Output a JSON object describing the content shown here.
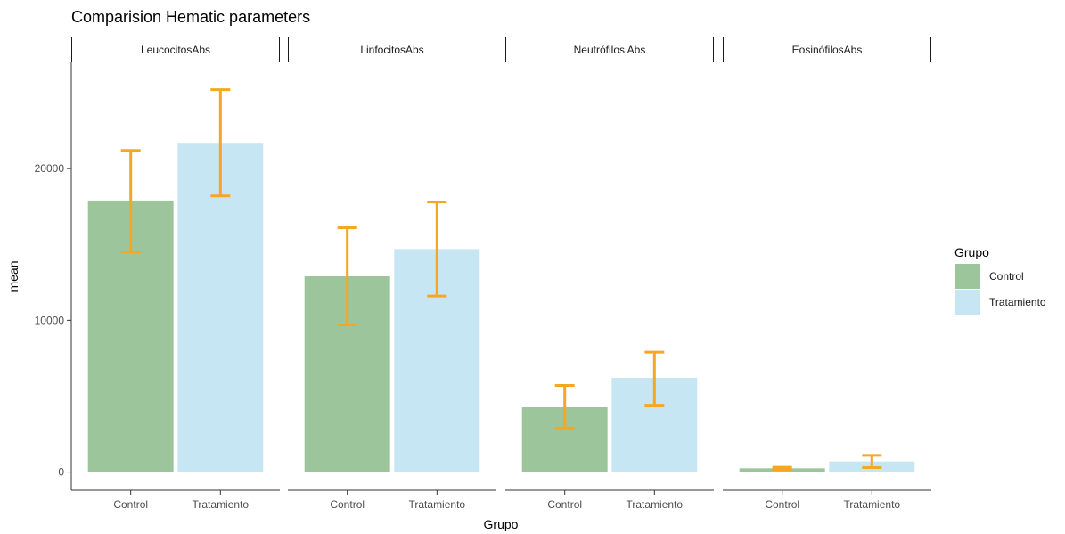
{
  "chart_data": {
    "type": "bar",
    "title": "Comparision Hematic parameters",
    "xlabel": "Grupo",
    "ylabel": "mean",
    "ylim": [
      -1200,
      27000
    ],
    "yticks": [
      0,
      10000,
      20000
    ],
    "ytick_labels": [
      "0",
      "10000",
      "20000"
    ],
    "categories": [
      "Control",
      "Tratamiento"
    ],
    "facets": [
      {
        "label": "LeucocitosAbs",
        "values": [
          17900,
          21700
        ],
        "error_low": [
          14500,
          18200
        ],
        "error_high": [
          21200,
          25200
        ]
      },
      {
        "label": "LinfocitosAbs",
        "values": [
          12900,
          14700
        ],
        "error_low": [
          9700,
          11600
        ],
        "error_high": [
          16100,
          17800
        ]
      },
      {
        "label": "Neutrófilos Abs",
        "values": [
          4300,
          6200
        ],
        "error_low": [
          2900,
          4400
        ],
        "error_high": [
          5700,
          7900
        ]
      },
      {
        "label": "EosinófilosAbs",
        "values": [
          250,
          700
        ],
        "error_low": [
          180,
          300
        ],
        "error_high": [
          320,
          1100
        ]
      }
    ],
    "legend": {
      "title": "Grupo",
      "position": "right",
      "entries": [
        {
          "label": "Control",
          "color": "#9dc59b"
        },
        {
          "label": "Tratamiento",
          "color": "#c6e6f4"
        }
      ]
    },
    "errorbar_color": "#f5a623",
    "grid": false
  }
}
